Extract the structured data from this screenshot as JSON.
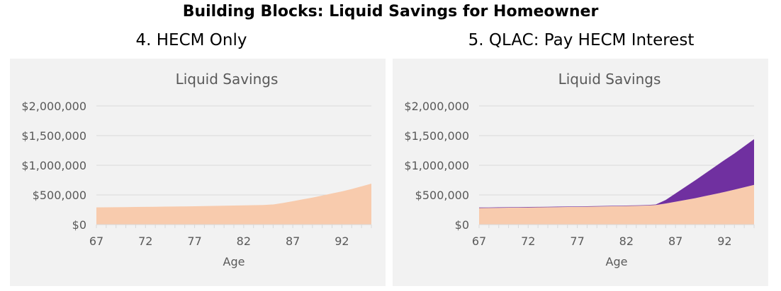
{
  "title": "Building Blocks: Liquid Savings for Homeowner",
  "colors": {
    "base": "#f8cbad",
    "top": "#7030a0",
    "grid": "#d9d9d9",
    "panel": "#f2f2f2",
    "text": "#595959"
  },
  "chart_data": [
    {
      "subtitle": "4. HECM Only",
      "type": "area",
      "title": "Liquid Savings",
      "xlabel": "Age",
      "ylabel": "",
      "ylim": [
        0,
        2000000
      ],
      "yticks": [
        "$0",
        "$500,000",
        "$1,000,000",
        "$1,500,000",
        "$2,000,000"
      ],
      "xticks": [
        "67",
        "72",
        "77",
        "82",
        "87",
        "92"
      ],
      "grid": true,
      "x": [
        67,
        68,
        69,
        70,
        71,
        72,
        73,
        74,
        75,
        76,
        77,
        78,
        79,
        80,
        81,
        82,
        83,
        84,
        85,
        86,
        87,
        88,
        89,
        90,
        91,
        92,
        93,
        94,
        95
      ],
      "series": [
        {
          "values": [
            290000,
            291000,
            293000,
            295000,
            297000,
            299000,
            301000,
            303000,
            305000,
            307000,
            309000,
            312000,
            315000,
            318000,
            321000,
            324000,
            327000,
            331000,
            340000,
            365000,
            395000,
            425000,
            455000,
            490000,
            525000,
            560000,
            600000,
            645000,
            690000
          ]
        }
      ]
    },
    {
      "subtitle": "5. QLAC: Pay HECM Interest",
      "type": "area",
      "stacked": true,
      "title": "Liquid Savings",
      "xlabel": "Age",
      "ylabel": "",
      "ylim": [
        0,
        2000000
      ],
      "yticks": [
        "$0",
        "$500,000",
        "$1,000,000",
        "$1,500,000",
        "$2,000,000"
      ],
      "xticks": [
        "67",
        "72",
        "77",
        "82",
        "87",
        "92"
      ],
      "grid": true,
      "x": [
        67,
        68,
        69,
        70,
        71,
        72,
        73,
        74,
        75,
        76,
        77,
        78,
        79,
        80,
        81,
        82,
        83,
        84,
        85,
        86,
        87,
        88,
        89,
        90,
        91,
        92,
        93,
        94,
        95
      ],
      "series": [
        {
          "values": [
            280000,
            281000,
            283000,
            285000,
            287000,
            289000,
            291000,
            293000,
            295000,
            297000,
            299000,
            302000,
            305000,
            308000,
            311000,
            314000,
            317000,
            321000,
            330000,
            355000,
            385000,
            415000,
            445000,
            480000,
            515000,
            550000,
            590000,
            630000,
            670000
          ]
        },
        {
          "values": [
            8000,
            8000,
            8000,
            8000,
            8000,
            8000,
            8000,
            8000,
            8000,
            8000,
            8000,
            8000,
            8000,
            8000,
            8000,
            8000,
            8000,
            8000,
            10000,
            60000,
            140000,
            220000,
            300000,
            380000,
            460000,
            540000,
            610000,
            690000,
            770000
          ]
        }
      ]
    }
  ]
}
